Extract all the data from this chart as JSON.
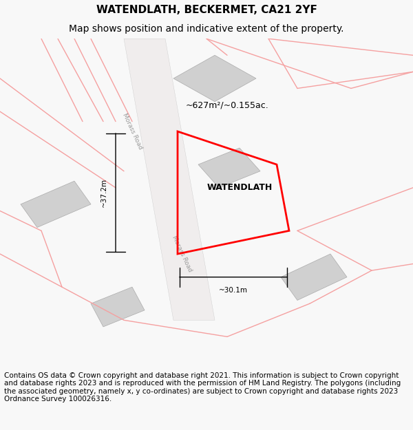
{
  "title_line1": "WATENDLATH, BECKERMET, CA21 2YF",
  "title_line2": "Map shows position and indicative extent of the property.",
  "footer_text": "Contains OS data © Crown copyright and database right 2021. This information is subject to Crown copyright and database rights 2023 and is reproduced with the permission of HM Land Registry. The polygons (including the associated geometry, namely x, y co-ordinates) are subject to Crown copyright and database rights 2023 Ordnance Survey 100026316.",
  "property_name": "WATENDLATH",
  "area_text": "~627m²/~0.155ac.",
  "dim_h": "~37.2m",
  "dim_w": "~30.1m",
  "road_label1": "Morass Road",
  "road_label2": "Morass Road",
  "bg_color": "#f5f0f0",
  "map_bg": "#ffffff",
  "red_outline": "#ff0000",
  "light_red": "#f5a0a0",
  "light_gray": "#d8d8d8",
  "dark_gray": "#888888",
  "title_fontsize": 11,
  "subtitle_fontsize": 10,
  "footer_fontsize": 7.5
}
